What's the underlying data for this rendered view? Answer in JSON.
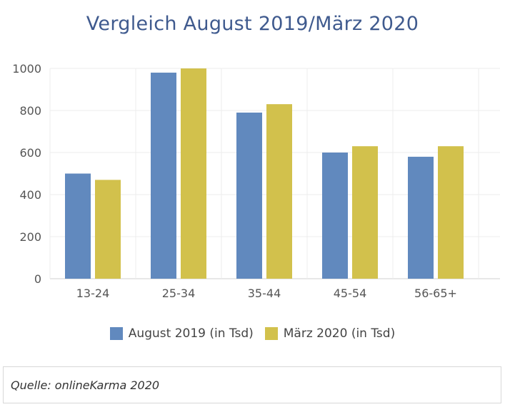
{
  "chart_data": {
    "type": "bar",
    "title": "Vergleich August 2019/März 2020",
    "categories": [
      "13-24",
      "25-34",
      "35-44",
      "45-54",
      "56-65+"
    ],
    "series": [
      {
        "name": "August 2019 (in Tsd)",
        "values": [
          500,
          980,
          790,
          600,
          580
        ],
        "color": "#6189be"
      },
      {
        "name": "März 2020 (in Tsd)",
        "values": [
          470,
          1000,
          830,
          630,
          630
        ],
        "color": "#d2c14c"
      }
    ],
    "ylim": [
      0,
      1000
    ],
    "yticks": [
      0,
      200,
      400,
      600,
      800,
      1000
    ],
    "grid": true,
    "legend": "bottom",
    "xlabel": "",
    "ylabel": ""
  },
  "source": "Quelle: onlineKarma 2020"
}
